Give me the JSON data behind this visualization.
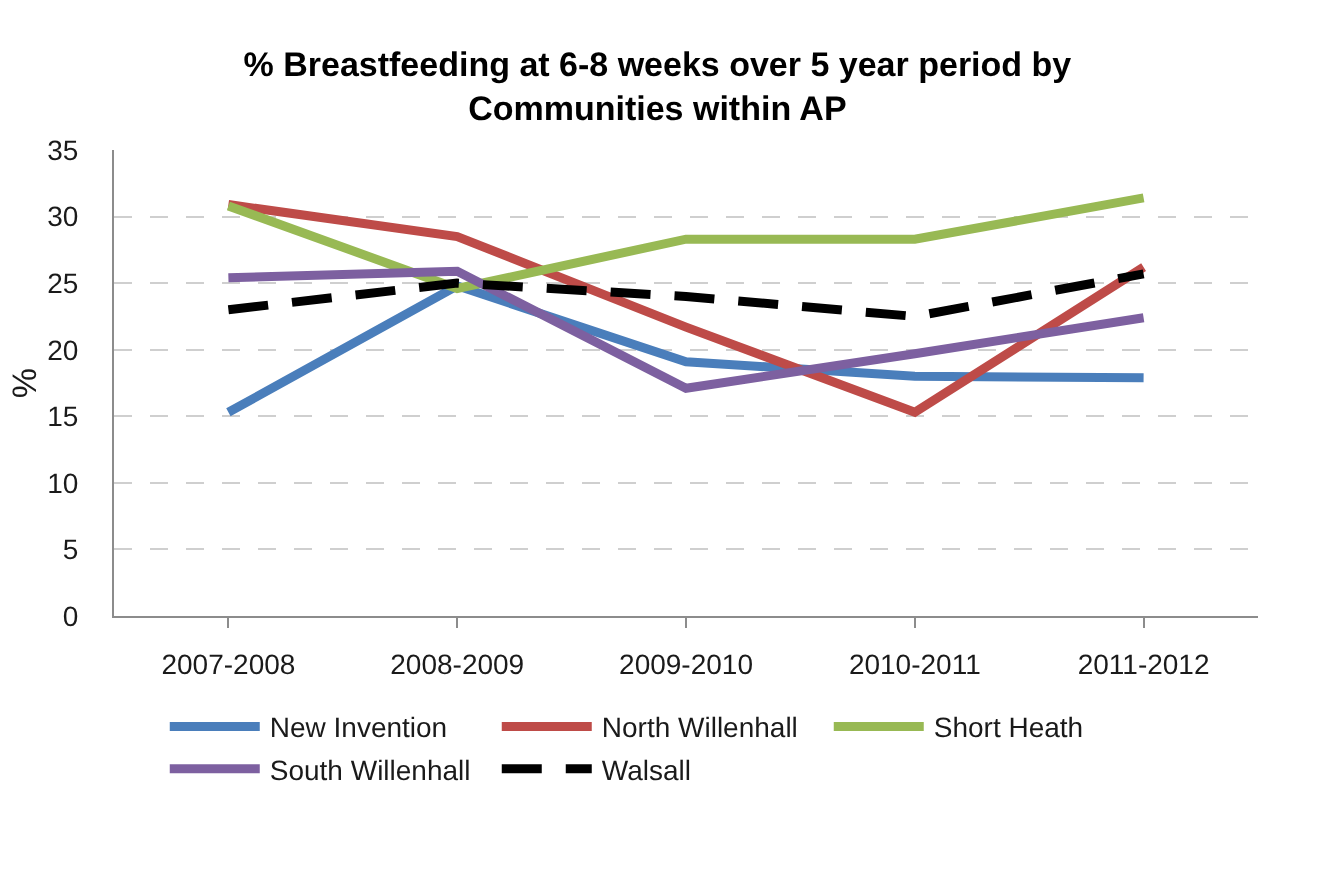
{
  "chart_data": {
    "type": "line",
    "title": "% Breastfeeding at 6-8 weeks over 5 year period by\nCommunities within AP",
    "ylabel": "%",
    "categories": [
      "2007-2008",
      "2008-2009",
      "2009-2010",
      "2010-2011",
      "2011-2012"
    ],
    "series": [
      {
        "name": "New Invention",
        "color": "#4a7ebb",
        "values": [
          15.3,
          24.8,
          19.1,
          18.0,
          17.9
        ]
      },
      {
        "name": "North Willenhall",
        "color": "#be4b48",
        "values": [
          30.9,
          28.5,
          21.7,
          15.3,
          26.2
        ]
      },
      {
        "name": "Short Heath",
        "color": "#98b954",
        "values": [
          30.8,
          24.6,
          28.3,
          28.3,
          31.4
        ]
      },
      {
        "name": "South Willenhall",
        "color": "#7d60a0",
        "values": [
          25.4,
          25.9,
          17.1,
          19.7,
          22.4
        ]
      },
      {
        "name": "Walsall",
        "color": "#000000",
        "values": [
          23.0,
          25.0,
          24.0,
          22.5,
          25.7
        ],
        "line_style": "dashed"
      }
    ],
    "ylim": [
      0,
      35
    ],
    "yticks": [
      0,
      5,
      10,
      15,
      20,
      25,
      30,
      35
    ],
    "grid": "y",
    "legend": "bottom"
  }
}
